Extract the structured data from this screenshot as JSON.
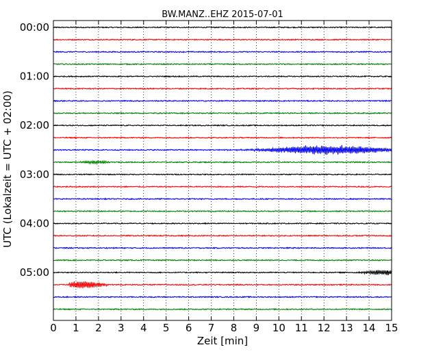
{
  "chart_data": {
    "type": "line",
    "title": "BW.MANZ..EHZ 2015-07-01",
    "xlabel": "Zeit  [min]",
    "ylabel": "UTC (Lokalzeit = UTC + 02:00)",
    "xlim": [
      0,
      15
    ],
    "x_ticks": [
      "0",
      "1",
      "2",
      "3",
      "4",
      "5",
      "6",
      "7",
      "8",
      "9",
      "10",
      "11",
      "12",
      "13",
      "14",
      "15"
    ],
    "y_ticks": [
      "00:00",
      "01:00",
      "02:00",
      "03:00",
      "04:00",
      "05:00"
    ],
    "grid": "vertical-dotted",
    "trace_colors": [
      "#000000",
      "#ff0000",
      "#0000ff",
      "#008000"
    ],
    "rows_per_hour": 4,
    "row_count": 24,
    "events": [
      {
        "row": 10,
        "start_min": 7.5,
        "end_min": 15,
        "peak_min": 12.2,
        "amplitude": 0.9
      },
      {
        "row": 11,
        "start_min": 0.9,
        "end_min": 2.6,
        "peak_min": 1.8,
        "amplitude": 0.35
      },
      {
        "row": 20,
        "start_min": 12.5,
        "end_min": 15,
        "peak_min": 14.6,
        "amplitude": 0.5
      },
      {
        "row": 21,
        "start_min": 0.7,
        "end_min": 3.2,
        "peak_min": 1.3,
        "amplitude": 0.8
      }
    ]
  }
}
